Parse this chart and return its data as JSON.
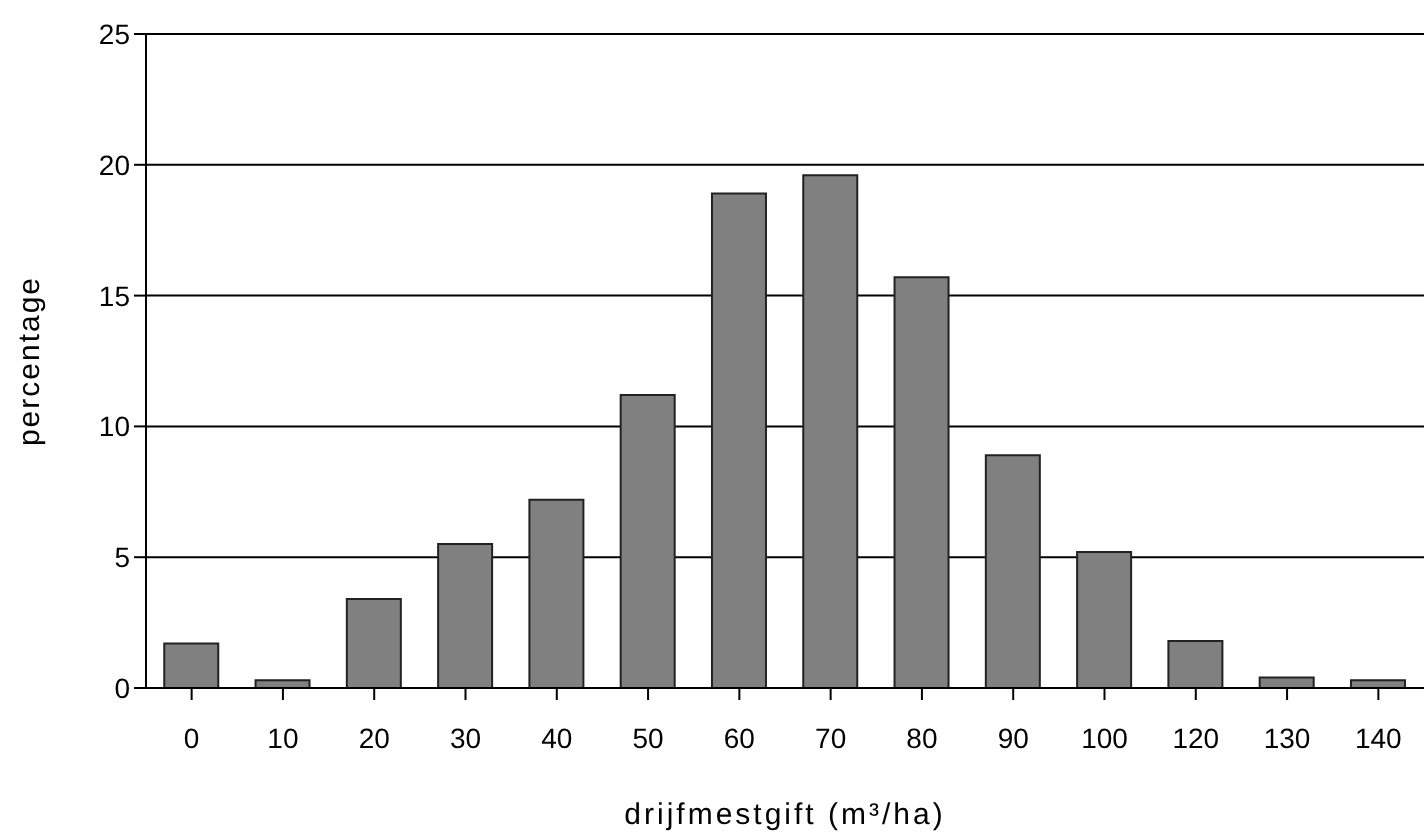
{
  "chart_data": {
    "type": "bar",
    "xlabel": "drijfmestgift (m³/ha)",
    "ylabel": "percentage",
    "categories": [
      "0",
      "10",
      "20",
      "30",
      "40",
      "50",
      "60",
      "70",
      "80",
      "90",
      "100",
      "120",
      "130",
      "140"
    ],
    "values": [
      1.7,
      0.3,
      3.4,
      5.5,
      7.2,
      11.2,
      18.9,
      19.6,
      15.7,
      8.9,
      5.2,
      1.8,
      0.4,
      0.3
    ],
    "color": "#808080",
    "ylim": [
      0,
      25
    ],
    "yticks": [
      0,
      5,
      10,
      15,
      20,
      25
    ],
    "grid": "y",
    "legend": false
  }
}
